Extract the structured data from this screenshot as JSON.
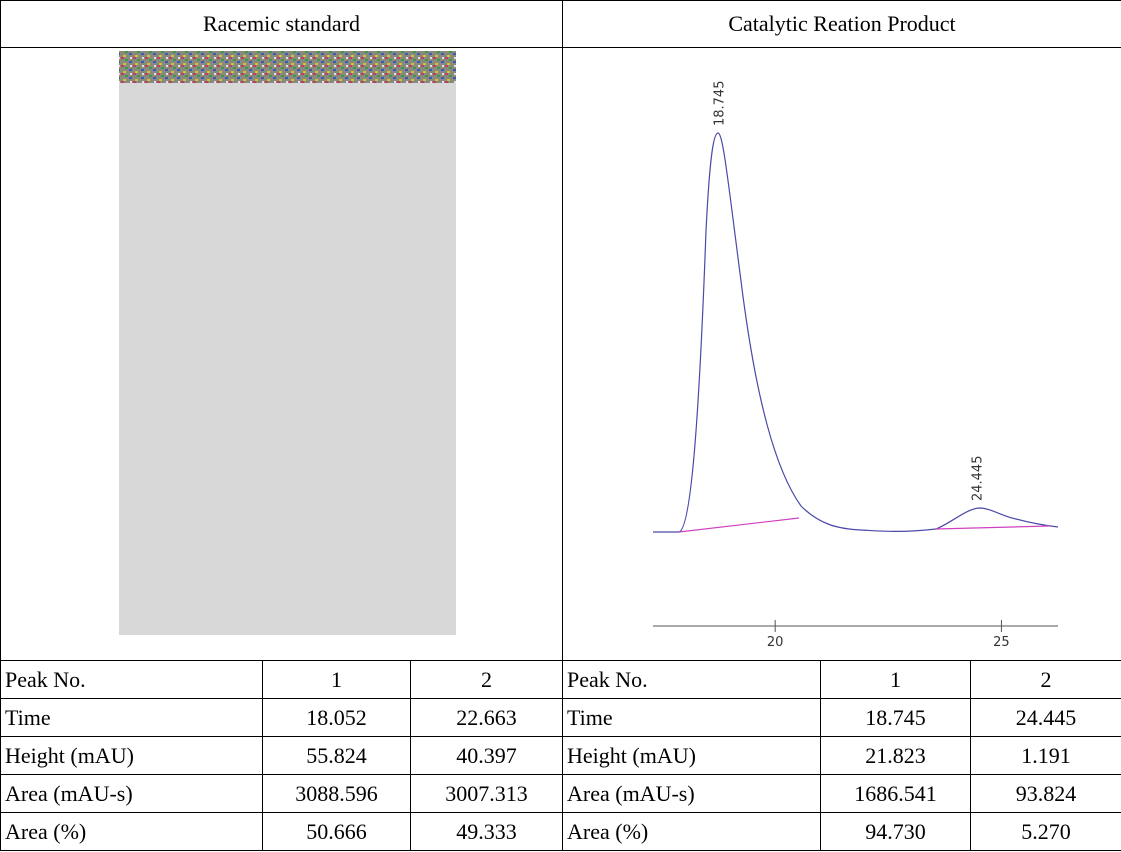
{
  "left": {
    "title": "Racemic standard"
  },
  "right": {
    "title": "Catalytic Reation Product",
    "chromatogram": {
      "peak_labels": [
        18.745,
        24.445
      ],
      "xlim": [
        17.3,
        26.25
      ],
      "xticks": [
        20,
        25
      ]
    }
  },
  "tables": [
    {
      "rows": [
        [
          "Peak No.",
          "1",
          "2"
        ],
        [
          "Time",
          "18.052",
          "22.663"
        ],
        [
          "Height (mAU)",
          "55.824",
          "40.397"
        ],
        [
          "Area (mAU-s)",
          "3088.596",
          "3007.313"
        ],
        [
          "Area (%)",
          "50.666",
          "49.333"
        ]
      ]
    },
    {
      "rows": [
        [
          "Peak No.",
          "1",
          "2"
        ],
        [
          "Time",
          "18.745",
          "24.445"
        ],
        [
          "Height (mAU)",
          "21.823",
          "1.191"
        ],
        [
          "Area (mAU-s)",
          "1686.541",
          "93.824"
        ],
        [
          "Area (%)",
          "94.730",
          "5.270"
        ]
      ]
    }
  ]
}
